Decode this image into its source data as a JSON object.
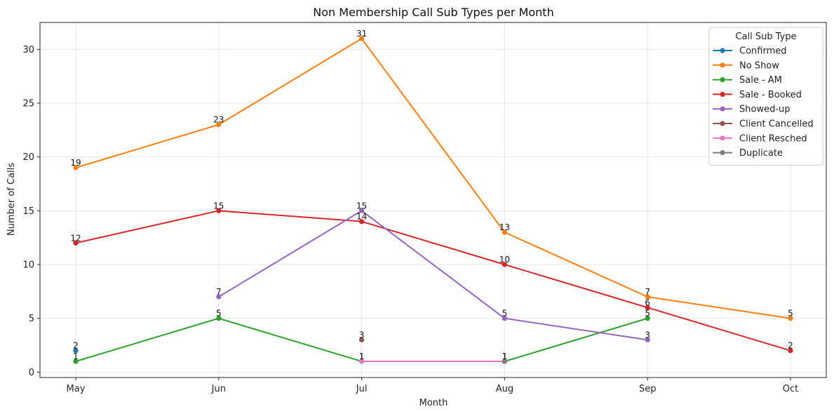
{
  "chart_data": {
    "type": "line",
    "title": "Non Membership Call Sub Types per Month",
    "xlabel": "Month",
    "ylabel": "Number of Calls",
    "categories": [
      "May",
      "Jun",
      "Jul",
      "Aug",
      "Sep",
      "Oct"
    ],
    "ylim": [
      -0.5,
      32.5
    ],
    "yticks": [
      0,
      5,
      10,
      15,
      20,
      25,
      30
    ],
    "grid": true,
    "legend": {
      "title": "Call Sub Type",
      "placement": "top-right"
    },
    "series": [
      {
        "name": "Confirmed",
        "color": "#1f77b4",
        "values": [
          2,
          null,
          null,
          null,
          null,
          null
        ]
      },
      {
        "name": "No Show",
        "color": "#ff7f0e",
        "values": [
          19,
          23,
          31,
          13,
          7,
          5
        ]
      },
      {
        "name": "Sale - AM",
        "color": "#2ca02c",
        "values": [
          1,
          5,
          1,
          1,
          5,
          null
        ]
      },
      {
        "name": "Sale - Booked",
        "color": "#d62728",
        "values": [
          12,
          15,
          14,
          10,
          6,
          2
        ]
      },
      {
        "name": "Showed-up",
        "color": "#9467bd",
        "values": [
          null,
          7,
          15,
          5,
          3,
          null
        ]
      },
      {
        "name": "Client Cancelled",
        "color": "#8c564b",
        "values": [
          null,
          null,
          3,
          null,
          null,
          null
        ]
      },
      {
        "name": "Client Resched",
        "color": "#e377c2",
        "values": [
          null,
          null,
          1,
          1,
          null,
          null
        ]
      },
      {
        "name": "Duplicate",
        "color": "#7f7f7f",
        "values": [
          null,
          null,
          null,
          1,
          null,
          null
        ]
      }
    ]
  }
}
